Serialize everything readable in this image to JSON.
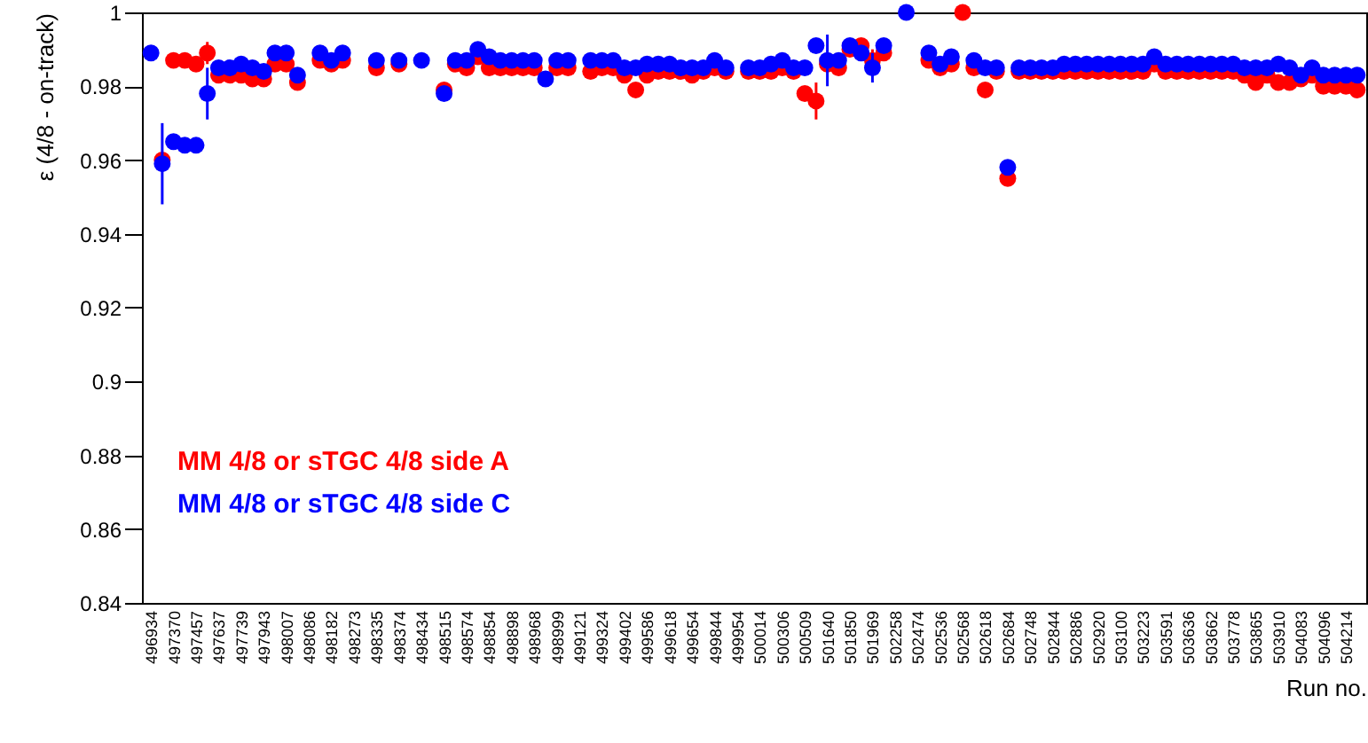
{
  "chart_data": {
    "type": "scatter",
    "ylabel": "ε (4/8 - on-track)",
    "xlabel": "Run no.",
    "categories": [
      "496934",
      null,
      "497370",
      null,
      "497457",
      null,
      "497637",
      null,
      "497739",
      null,
      "497943",
      null,
      "498007",
      null,
      "498086",
      null,
      "498182",
      null,
      "498273",
      null,
      "498335",
      null,
      "498374",
      null,
      "498434",
      null,
      "498515",
      null,
      "498574",
      null,
      "498854",
      null,
      "498898",
      null,
      "498968",
      null,
      "498999",
      null,
      "499121",
      null,
      "499324",
      null,
      "499402",
      null,
      "499586",
      null,
      "499618",
      null,
      "499654",
      null,
      "499844",
      null,
      "499954",
      null,
      "500014",
      null,
      "500306",
      null,
      "500509",
      null,
      "501640",
      null,
      "501850",
      null,
      "501969",
      null,
      "502258",
      null,
      "502474",
      null,
      "502536",
      null,
      "502568",
      null,
      "502618",
      null,
      "502684",
      null,
      "502748",
      null,
      "502844",
      null,
      "502886",
      null,
      "502920",
      null,
      "503100",
      null,
      "503223",
      null,
      "503591",
      null,
      "503636",
      null,
      "503662",
      null,
      "503778",
      null,
      "503865",
      null,
      "503910",
      null,
      "504083",
      null,
      "504096",
      null,
      "504214",
      null
    ],
    "series": [
      {
        "name": "MM 4/8 or sTGC 4/8 side A",
        "color": "#ff0000",
        "values": [
          null,
          0.96,
          0.987,
          0.987,
          0.986,
          0.989,
          0.983,
          0.983,
          0.983,
          0.982,
          0.982,
          0.986,
          0.986,
          0.981,
          null,
          0.987,
          0.986,
          0.987,
          null,
          null,
          0.985,
          null,
          0.986,
          null,
          null,
          null,
          0.979,
          0.986,
          0.985,
          0.988,
          0.985,
          0.985,
          0.985,
          0.985,
          0.985,
          null,
          0.985,
          0.985,
          null,
          0.984,
          0.985,
          0.985,
          0.983,
          0.979,
          0.983,
          0.984,
          0.984,
          0.984,
          0.983,
          0.984,
          0.985,
          0.984,
          null,
          0.984,
          0.984,
          0.984,
          0.985,
          0.984,
          0.978,
          0.976,
          0.986,
          0.985,
          0.99,
          0.991,
          0.987,
          0.989,
          null,
          null,
          null,
          0.987,
          0.985,
          0.986,
          1.0,
          0.985,
          0.979,
          0.984,
          0.955,
          0.984,
          0.984,
          0.984,
          0.984,
          0.984,
          0.984,
          0.984,
          0.984,
          0.984,
          0.984,
          0.984,
          0.984,
          0.986,
          0.984,
          0.984,
          0.984,
          0.984,
          0.984,
          0.984,
          0.984,
          0.983,
          0.981,
          0.983,
          0.981,
          0.981,
          0.982,
          0.983,
          0.98,
          0.98,
          0.98,
          0.979
        ],
        "errors": [
          null,
          null,
          null,
          null,
          null,
          0.003,
          null,
          null,
          null,
          null,
          null,
          null,
          null,
          null,
          null,
          null,
          null,
          null,
          null,
          null,
          null,
          null,
          null,
          null,
          null,
          null,
          null,
          null,
          null,
          null,
          null,
          null,
          null,
          null,
          null,
          null,
          null,
          null,
          null,
          null,
          null,
          null,
          null,
          null,
          null,
          null,
          null,
          null,
          null,
          null,
          null,
          null,
          null,
          null,
          null,
          null,
          null,
          null,
          null,
          0.005,
          null,
          null,
          null,
          null,
          0.003,
          null,
          null,
          null,
          null,
          null,
          null,
          null,
          null,
          null,
          null,
          null,
          null,
          null,
          null,
          null,
          null,
          null,
          null,
          null,
          null,
          null,
          null,
          null,
          null,
          null,
          null,
          null,
          null,
          null,
          null,
          null,
          null,
          null,
          null,
          null,
          null,
          null,
          null,
          null,
          null,
          null,
          null,
          null
        ]
      },
      {
        "name": "MM 4/8 or sTGC 4/8 side C",
        "color": "#0000ff",
        "values": [
          0.989,
          0.959,
          0.965,
          0.964,
          0.964,
          0.978,
          0.985,
          0.985,
          0.986,
          0.985,
          0.984,
          0.989,
          0.989,
          0.983,
          null,
          0.989,
          0.987,
          0.989,
          null,
          null,
          0.987,
          null,
          0.987,
          null,
          0.987,
          null,
          0.978,
          0.987,
          0.987,
          0.99,
          0.988,
          0.987,
          0.987,
          0.987,
          0.987,
          0.982,
          0.987,
          0.987,
          null,
          0.987,
          0.987,
          0.987,
          0.985,
          0.985,
          0.986,
          0.986,
          0.986,
          0.985,
          0.985,
          0.985,
          0.987,
          0.985,
          null,
          0.985,
          0.985,
          0.986,
          0.987,
          0.985,
          0.985,
          0.991,
          0.987,
          0.987,
          0.991,
          0.989,
          0.985,
          0.991,
          null,
          1.0,
          null,
          0.989,
          0.986,
          0.988,
          null,
          0.987,
          0.985,
          0.985,
          0.958,
          0.985,
          0.985,
          0.985,
          0.985,
          0.986,
          0.986,
          0.986,
          0.986,
          0.986,
          0.986,
          0.986,
          0.986,
          0.988,
          0.986,
          0.986,
          0.986,
          0.986,
          0.986,
          0.986,
          0.986,
          0.985,
          0.985,
          0.985,
          0.986,
          0.985,
          0.983,
          0.985,
          0.983,
          0.983,
          0.983,
          0.983
        ],
        "errors": [
          null,
          0.011,
          null,
          null,
          null,
          0.007,
          null,
          null,
          null,
          null,
          null,
          null,
          null,
          null,
          null,
          null,
          null,
          null,
          null,
          null,
          null,
          null,
          null,
          null,
          null,
          null,
          null,
          null,
          null,
          null,
          null,
          null,
          null,
          null,
          null,
          null,
          null,
          null,
          null,
          null,
          null,
          null,
          null,
          null,
          null,
          null,
          null,
          null,
          null,
          null,
          null,
          null,
          null,
          null,
          null,
          null,
          null,
          null,
          null,
          null,
          0.007,
          null,
          null,
          null,
          0.004,
          null,
          null,
          null,
          null,
          null,
          null,
          null,
          null,
          null,
          null,
          null,
          null,
          null,
          null,
          null,
          null,
          null,
          null,
          null,
          null,
          null,
          null,
          null,
          null,
          null,
          null,
          null,
          null,
          null,
          null,
          null,
          null,
          null,
          null,
          null,
          null,
          null,
          null,
          null,
          null,
          null,
          null,
          null
        ]
      }
    ],
    "ylim": [
      0.84,
      1
    ],
    "yticks": [
      0.84,
      0.86,
      0.88,
      0.9,
      0.92,
      0.94,
      0.96,
      0.98,
      1
    ],
    "grid": false,
    "legend": "bottom left",
    "marker": "circle"
  }
}
